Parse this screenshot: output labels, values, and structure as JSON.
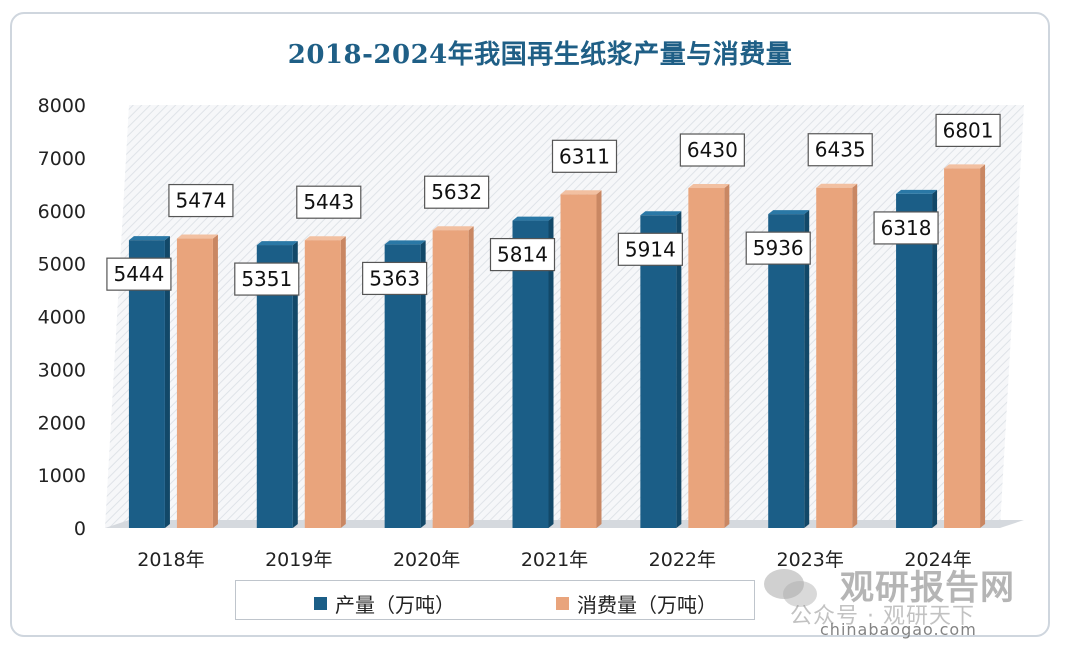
{
  "chart_data": {
    "type": "bar",
    "title": "2018-2024年我国再生纸浆产量与消费量",
    "categories": [
      "2018年",
      "2019年",
      "2020年",
      "2021年",
      "2022年",
      "2023年",
      "2024年"
    ],
    "series": [
      {
        "name": "产量（万吨）",
        "color": "#1b5e87",
        "values": [
          5444,
          5351,
          5363,
          5814,
          5914,
          5936,
          6318
        ]
      },
      {
        "name": "消费量（万吨）",
        "color": "#e9a47c",
        "values": [
          5474,
          5443,
          5632,
          6311,
          6430,
          6435,
          6801
        ]
      }
    ],
    "ylim": [
      0,
      8000
    ],
    "yticks": [
      0,
      1000,
      2000,
      3000,
      4000,
      5000,
      6000,
      7000,
      8000
    ],
    "xlabel": "",
    "ylabel": "",
    "legend": "bottom"
  },
  "watermark": {
    "brand": "观研报告网",
    "sub": "公众号 · 观研天下",
    "url": "chinabaogao.com"
  }
}
